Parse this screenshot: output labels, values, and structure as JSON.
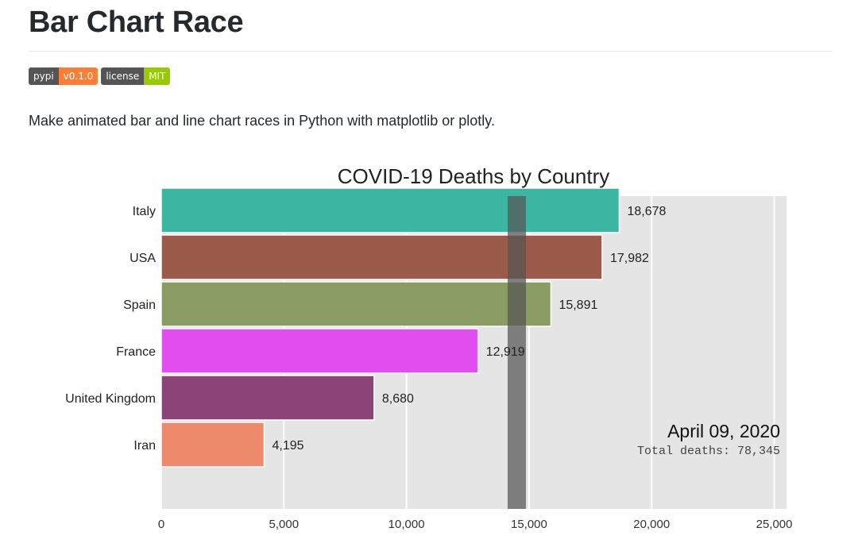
{
  "header": {
    "title": "Bar Chart Race",
    "description": "Make animated bar and line chart races in Python with matplotlib or plotly."
  },
  "badges": [
    {
      "label": "pypi",
      "value": "v0.1.0",
      "color": "#fe7d37"
    },
    {
      "label": "license",
      "value": "MIT",
      "color": "#97ca00"
    }
  ],
  "chart_data": {
    "type": "bar",
    "orientation": "horizontal",
    "title": "COVID-19 Deaths by Country",
    "categories": [
      "Italy",
      "USA",
      "Spain",
      "France",
      "United Kingdom",
      "Iran"
    ],
    "values": [
      18678,
      17982,
      15891,
      12919,
      8680,
      4195
    ],
    "value_labels": [
      "18,678",
      "17,982",
      "15,891",
      "12,919",
      "8,680",
      "4,195"
    ],
    "colors": [
      "#3db5a3",
      "#9b5a4a",
      "#8a9c64",
      "#e04ef2",
      "#8c4478",
      "#ed8a6c"
    ],
    "xlim": [
      0,
      25500
    ],
    "xticks": [
      0,
      5000,
      10000,
      15000,
      20000,
      25000
    ],
    "xtick_labels": [
      "0",
      "5,000",
      "10,000",
      "15,000",
      "20,000",
      "25,000"
    ],
    "reference_line": 14500,
    "date_label": "April 09, 2020",
    "summary_label": "Total deaths: 78,345",
    "grid": true,
    "background": "#e5e5e5"
  }
}
